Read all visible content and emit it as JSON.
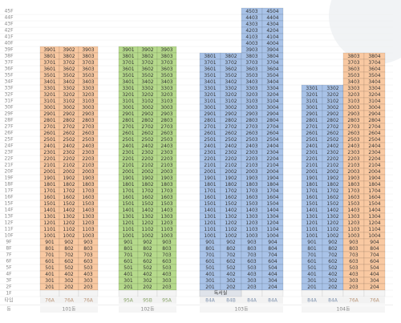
{
  "floors": [
    "45F",
    "44F",
    "43F",
    "42F",
    "41F",
    "40F",
    "39F",
    "38F",
    "37F",
    "36F",
    "35F",
    "34F",
    "33F",
    "32F",
    "31F",
    "30F",
    "29F",
    "28F",
    "27F",
    "26F",
    "25F",
    "24F",
    "23F",
    "22F",
    "21F",
    "20F",
    "19F",
    "18F",
    "17F",
    "16F",
    "15F",
    "14F",
    "13F",
    "12F",
    "11F",
    "10F",
    "9F",
    "8F",
    "7F",
    "6F",
    "5F",
    "4F",
    "3F",
    "2F",
    "1F"
  ],
  "type_header": "타입",
  "building_header": "동",
  "buildings": [
    {
      "name": "101동",
      "columns": [
        {
          "type": "76A",
          "color": "#f9c9a2",
          "units": [
            3901,
            3801,
            3701,
            3601,
            3501,
            3401,
            3301,
            3201,
            3101,
            3001,
            2901,
            2801,
            2701,
            2601,
            2501,
            2401,
            2301,
            2201,
            2101,
            2001,
            1901,
            1801,
            1701,
            1601,
            1501,
            1401,
            1301,
            1201,
            1101,
            1001,
            901,
            801,
            701,
            601,
            501,
            401,
            301,
            201
          ]
        },
        {
          "type": "76A",
          "color": "#f9c9a2",
          "units": [
            3902,
            3802,
            3702,
            3602,
            3502,
            3402,
            3302,
            3202,
            3102,
            3002,
            2902,
            2802,
            2702,
            2602,
            2502,
            2402,
            2302,
            2202,
            2102,
            2002,
            1902,
            1802,
            1702,
            1602,
            1502,
            1402,
            1302,
            1202,
            1102,
            1002,
            902,
            802,
            702,
            602,
            502,
            402,
            302,
            202
          ]
        },
        {
          "type": "76A",
          "color": "#f9c9a2",
          "units": [
            3903,
            3803,
            3703,
            3603,
            3503,
            3403,
            3303,
            3203,
            3103,
            3003,
            2903,
            2803,
            2703,
            2603,
            2503,
            2403,
            2303,
            2203,
            2103,
            2003,
            1903,
            1803,
            1703,
            1603,
            1503,
            1403,
            1303,
            1203,
            1103,
            1003,
            903,
            803,
            703,
            603,
            503,
            403,
            303,
            203
          ]
        }
      ]
    },
    {
      "name": "102동",
      "columns": [
        {
          "type": "95A",
          "color": "#b6da8c",
          "units": [
            3901,
            3801,
            3701,
            3601,
            3501,
            3401,
            3301,
            3201,
            3101,
            3001,
            2901,
            2801,
            2701,
            2601,
            2501,
            2401,
            2301,
            2201,
            2101,
            2001,
            1901,
            1801,
            1701,
            1601,
            1501,
            1401,
            1301,
            1201,
            1101,
            1001,
            901,
            801,
            701,
            601,
            501,
            401,
            301,
            201
          ]
        },
        {
          "type": "95B",
          "color": "#b6da8c",
          "units": [
            3902,
            3802,
            3702,
            3602,
            3502,
            3402,
            3302,
            3202,
            3102,
            3002,
            2902,
            2802,
            2702,
            2602,
            2502,
            2402,
            2302,
            2202,
            2102,
            2002,
            1902,
            1802,
            1702,
            1602,
            1502,
            1402,
            1302,
            1202,
            1102,
            1002,
            902,
            802,
            702,
            602,
            502,
            402,
            302,
            202
          ]
        },
        {
          "type": "95A",
          "color": "#b6da8c",
          "units": [
            3903,
            3803,
            3703,
            3603,
            3503,
            3403,
            3303,
            3203,
            3103,
            3003,
            2903,
            2803,
            2703,
            2603,
            2503,
            2403,
            2303,
            2203,
            2103,
            2003,
            1903,
            1803,
            1703,
            1603,
            1503,
            1403,
            1303,
            1203,
            1103,
            1003,
            903,
            803,
            703,
            603,
            503,
            403,
            303,
            203
          ]
        }
      ]
    },
    {
      "name": "103동",
      "ground_label": "독서실",
      "columns": [
        {
          "type": "84A",
          "color": "#a9c3e8",
          "units": [
            3801,
            3701,
            3601,
            3501,
            3401,
            3301,
            3201,
            3101,
            3001,
            2901,
            2801,
            2701,
            2601,
            2501,
            2401,
            2301,
            2201,
            2101,
            2001,
            1901,
            1801,
            1701,
            1601,
            1501,
            1401,
            1301,
            1201,
            1101,
            1001,
            901,
            801,
            701,
            601,
            501,
            401,
            301,
            201
          ]
        },
        {
          "type": "84B",
          "color": "#a9c3e8",
          "units": [
            3802,
            3702,
            3602,
            3502,
            3402,
            3302,
            3202,
            3102,
            3002,
            2902,
            2802,
            2702,
            2602,
            2502,
            2402,
            2302,
            2202,
            2102,
            2002,
            1902,
            1802,
            1702,
            1602,
            1502,
            1402,
            1302,
            1202,
            1102,
            1002,
            902,
            802,
            702,
            602,
            502,
            402,
            302,
            202
          ]
        },
        {
          "type": "84A",
          "color": "#a9c3e8",
          "units": [
            4503,
            4403,
            4303,
            4203,
            4103,
            4003,
            3903,
            3803,
            3703,
            3603,
            3503,
            3403,
            3303,
            3203,
            3103,
            3003,
            2903,
            2803,
            2703,
            2603,
            2503,
            2403,
            2303,
            2203,
            2103,
            2003,
            1903,
            1803,
            1703,
            1603,
            1503,
            1403,
            1303,
            1203,
            1103,
            1003,
            903,
            803,
            703,
            603,
            503,
            403,
            303,
            203
          ]
        },
        {
          "type": "84A",
          "color": "#a9c3e8",
          "units": [
            4504,
            4404,
            4304,
            4204,
            4104,
            4004,
            3904,
            3804,
            3704,
            3604,
            3504,
            3404,
            3304,
            3204,
            3104,
            3004,
            2904,
            2804,
            2704,
            2604,
            2504,
            2404,
            2304,
            2204,
            2104,
            2004,
            1904,
            1804,
            1704,
            1604,
            1504,
            1404,
            1304,
            1204,
            1104,
            1004,
            904,
            804,
            704,
            604,
            504,
            404,
            304,
            204
          ]
        }
      ]
    },
    {
      "name": "104동",
      "columns": [
        {
          "type": "84A",
          "color": "#a9c3e8",
          "units": [
            3301,
            3201,
            3101,
            3001,
            2901,
            2801,
            2701,
            2601,
            2501,
            2401,
            2301,
            2201,
            2101,
            2001,
            1901,
            1801,
            1701,
            1601,
            1501,
            1401,
            1301,
            1201,
            1101,
            1001,
            901,
            801,
            701,
            601,
            501,
            401,
            301,
            201
          ]
        },
        {
          "type": "84A",
          "color": "#a9c3e8",
          "units": [
            3302,
            3202,
            3102,
            3002,
            2902,
            2802,
            2702,
            2602,
            2502,
            2402,
            2302,
            2202,
            2102,
            2002,
            1902,
            1802,
            1702,
            1602,
            1502,
            1402,
            1302,
            1202,
            1102,
            1002,
            902,
            802,
            702,
            602,
            502,
            402,
            302,
            202
          ]
        },
        {
          "type": "76A",
          "color": "#f9c9a2",
          "units": [
            3803,
            3703,
            3603,
            3503,
            3403,
            3303,
            3203,
            3103,
            3003,
            2903,
            2803,
            2703,
            2603,
            2503,
            2403,
            2303,
            2203,
            2103,
            2003,
            1903,
            1803,
            1703,
            1603,
            1503,
            1403,
            1303,
            1203,
            1103,
            1003,
            903,
            803,
            703,
            603,
            503,
            403,
            303,
            203
          ]
        },
        {
          "type": "76A",
          "color": "#f9c9a2",
          "units": [
            3804,
            3704,
            3604,
            3504,
            3404,
            3304,
            3204,
            3104,
            3004,
            2904,
            2804,
            2704,
            2604,
            2504,
            2404,
            2304,
            2204,
            2104,
            2004,
            1904,
            1804,
            1704,
            1604,
            1504,
            1404,
            1304,
            1204,
            1104,
            1004,
            904,
            804,
            704,
            604,
            504,
            404,
            304,
            204
          ]
        }
      ]
    }
  ]
}
